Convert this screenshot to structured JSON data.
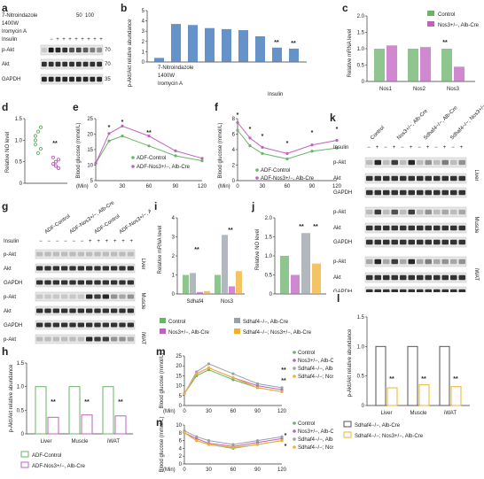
{
  "panels": {
    "a": "a",
    "b": "b",
    "c": "c",
    "d": "d",
    "e": "e",
    "f": "f",
    "g": "g",
    "h": "h",
    "i": "i",
    "j": "j",
    "k": "k",
    "l": "l",
    "m": "m",
    "n": "n"
  },
  "blot_a": {
    "treatments": [
      "7-Nitroindazole",
      "1400W",
      "Iromycin A",
      "Insulin"
    ],
    "dose_50": "50",
    "dose_100": "100",
    "minus": "−",
    "plus": "+",
    "bands": [
      "p-Akt",
      "Akt",
      "GAPDH"
    ],
    "mw": [
      "70",
      "70",
      "35"
    ]
  },
  "chart_b": {
    "ylabel": "p-Akt/Akt relative abundance",
    "xlabel": "Insulin",
    "rows": [
      "7-Nitroindazole",
      "1400W",
      "Iromycin A"
    ],
    "doses": [
      "50",
      "100"
    ],
    "sig": "**"
  },
  "chart_c": {
    "ylabel": "Relative mRNA level",
    "legend": [
      "Control",
      "Nos3+/−, Alb-Cre"
    ],
    "categories": [
      "Nos1",
      "Nos2",
      "Nos3"
    ],
    "sig": "**",
    "ticks": [
      "0",
      "0.5",
      "1.0",
      "1.5",
      "2.0"
    ]
  },
  "chart_d": {
    "ylabel": "Relative NO level",
    "ticks": [
      "0",
      "0.5",
      "1.0",
      "1.5"
    ],
    "sig": "**"
  },
  "chart_e": {
    "ylabel": "Blood glucose (mmol/L)",
    "xlabel": "(Min)",
    "xticks": [
      "0",
      "30",
      "60",
      "90",
      "120"
    ],
    "yticks": [
      "5",
      "10",
      "15",
      "20",
      "25"
    ],
    "legend": [
      "ADF-Control",
      "ADF-Nos3+/−, Alb-Cre"
    ],
    "sig": [
      "*",
      "*",
      "**"
    ]
  },
  "chart_f": {
    "ylabel": "Blood glucose (mmol/L)",
    "xlabel": "(Min)",
    "xticks": [
      "0",
      "30",
      "60",
      "90",
      "120"
    ],
    "yticks": [
      "0",
      "2",
      "4",
      "6",
      "8"
    ],
    "legend": [
      "ADF-Control",
      "ADF-Nos3+/−, Alb-Cre"
    ],
    "sig": [
      "*",
      "*",
      "*",
      "*",
      "*",
      "*"
    ]
  },
  "blot_g": {
    "groups": [
      "ADF-Control",
      "ADF-Nos3+/−, Alb-Cre",
      "ADF-Control",
      "ADF-Nos3+/−, Alb-Cre"
    ],
    "insulin": "Insulin",
    "signs": [
      "−",
      "−",
      "−",
      "−",
      "−",
      "−",
      "+",
      "+",
      "+",
      "+",
      "+",
      "+"
    ],
    "tissues": [
      "Liver",
      "Muscle",
      "iWAT"
    ],
    "bands": [
      "p-Akt",
      "Akt",
      "GAPDH",
      "p-Akt",
      "Akt",
      "GAPDH",
      "p-Akt",
      "Akt",
      "GAPDH"
    ]
  },
  "chart_h": {
    "ylabel": "p-Akt/Akt relative abundance",
    "categories": [
      "Liver",
      "Muscle",
      "iWAT"
    ],
    "legend": [
      "ADF-Control",
      "ADF-Nos3+/−, Alb-Cre"
    ],
    "sig": "**",
    "yticks": [
      "0",
      "0.5",
      "1.0",
      "1.5"
    ]
  },
  "chart_i": {
    "ylabel": "Relative mRNA level",
    "categories": [
      "Sdhaf4",
      "Nos3"
    ],
    "legend": [
      "Control",
      "Sdhaf4−/−, Alb-Cre",
      "Nos3+/−, Alb-Cre",
      "Sdhaf4−/−; Nos3+/−, Alb-Cre"
    ],
    "sig": "**",
    "yticks": [
      "0",
      "1",
      "2",
      "3",
      "4"
    ]
  },
  "chart_j": {
    "ylabel": "Relative NO level",
    "sig": "**",
    "yticks": [
      "0",
      "0.5",
      "1.0",
      "1.5",
      "2.0"
    ]
  },
  "blot_k": {
    "groups": [
      "Control",
      "Nos3+/−, Alb-Cre",
      "Sdhaf4−/−, Alb-Cre",
      "Sdhaf4−/−; Nos3+/−, Alb-Cre"
    ],
    "insulin": "Insulin",
    "tissues": [
      "Liver",
      "Muscle",
      "iWAT"
    ],
    "bands": [
      "p-Akt",
      "Akt",
      "GAPDH",
      "p-Akt",
      "Akt",
      "GAPDH",
      "p-Akt",
      "Akt",
      "GAPDH"
    ]
  },
  "chart_l": {
    "ylabel": "p-Akt/Akt relative abundance",
    "categories": [
      "Liver",
      "Muscle",
      "iWAT"
    ],
    "legend": [
      "Sdhaf4−/−, Alb-Cre",
      "Sdhaf4−/−; Nos3+/−, Alb-Cre"
    ],
    "sig": "**",
    "yticks": [
      "0",
      "0.5",
      "1.0",
      "1.5"
    ]
  },
  "chart_m": {
    "ylabel": "Blood glucose (mmol/L)",
    "xlabel": "(Min)",
    "xticks": [
      "0",
      "30",
      "60",
      "90",
      "120"
    ],
    "yticks": [
      "0",
      "5",
      "10",
      "15",
      "20",
      "25"
    ],
    "legend": [
      "Control",
      "Nos3+/−, Alb-Cre",
      "Sdhaf4−/−, Alb-Cre",
      "Sdhaf4−/−; Nos3+/−, Alb-Cre"
    ],
    "sig": [
      "**",
      "**",
      "**"
    ]
  },
  "chart_n": {
    "ylabel": "Blood glucose (mmol/L)",
    "xlabel": "(Min)",
    "xticks": [
      "0",
      "30",
      "60",
      "90",
      "120"
    ],
    "yticks": [
      "0",
      "2",
      "4",
      "6",
      "8",
      "10"
    ],
    "legend": [
      "Control",
      "Nos3+/−, Alb-Cre",
      "Sdhaf4−/−, Alb-Cre",
      "Sdhaf4−/−; Nos3+/−, Alb-Cre"
    ],
    "sig": [
      "*",
      "*",
      "*"
    ]
  },
  "colors": {
    "control": "#6ab36a",
    "nos3": "#c060c0",
    "sdhaf4": "#9aa0aa",
    "double": "#f0b030",
    "blot": "#1a1a1a",
    "blue": "#4a7fc0"
  }
}
